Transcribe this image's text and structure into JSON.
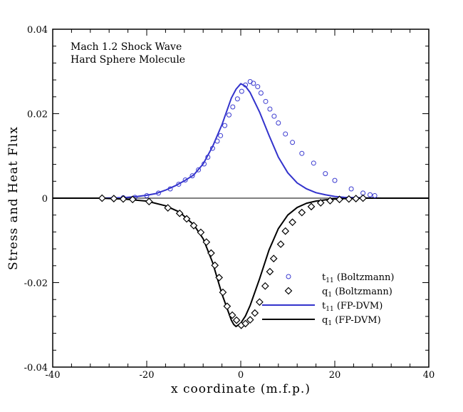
{
  "chart_data": {
    "type": "line",
    "xlabel": "x coordinate (m.f.p.)",
    "ylabel": "Stress and Heat Flux",
    "xlim": [
      -40,
      40
    ],
    "ylim": [
      -0.04,
      0.04
    ],
    "x_ticks": [
      -40,
      -20,
      0,
      20,
      40
    ],
    "x_tick_labels": [
      "-40",
      "-20",
      "0",
      "20",
      "40"
    ],
    "y_ticks": [
      -0.04,
      -0.02,
      0,
      0.02,
      0.04
    ],
    "y_tick_labels": [
      "-0.04",
      "-0.02",
      "0",
      "0.02",
      "0.04"
    ],
    "annotation": [
      "Mach 1.2 Shock Wave",
      "Hard Sphere Molecule"
    ],
    "legend_position": "bottom-right",
    "series": [
      {
        "name": "t11 (Boltzmann)",
        "legend_main": "t",
        "legend_sub": "11",
        "legend_rest": " (Boltzmann)",
        "kind": "scatter",
        "marker": "circle",
        "color": "#3a3ad0",
        "x": [
          -29.5,
          -27,
          -25,
          -22.5,
          -20,
          -17.5,
          -15,
          -13.2,
          -11.8,
          -10.3,
          -9,
          -7.8,
          -7,
          -6,
          -5,
          -4.3,
          -3.4,
          -2.5,
          -1.7,
          -0.7,
          0.2,
          1,
          2,
          2.7,
          3.6,
          4.3,
          5.3,
          6.2,
          7.1,
          8,
          9.5,
          11,
          13,
          15.5,
          18,
          20,
          23.5,
          26,
          27.5,
          28.5
        ],
        "y": [
          0.0,
          0.0,
          0.0001,
          0.0002,
          0.0006,
          0.0012,
          0.0022,
          0.0033,
          0.0043,
          0.0053,
          0.0067,
          0.0081,
          0.0097,
          0.0118,
          0.0135,
          0.0148,
          0.0172,
          0.0197,
          0.0216,
          0.0235,
          0.0253,
          0.0268,
          0.0276,
          0.0272,
          0.0264,
          0.0249,
          0.0229,
          0.0211,
          0.0194,
          0.0178,
          0.0152,
          0.0132,
          0.0106,
          0.0083,
          0.0058,
          0.0042,
          0.0022,
          0.0012,
          0.0008,
          0.0006
        ]
      },
      {
        "name": "q1 (Boltzmann)",
        "legend_main": "q",
        "legend_sub": "1",
        "legend_rest": " (Boltzmann)",
        "kind": "scatter",
        "marker": "diamond",
        "color": "#000000",
        "x": [
          -29.5,
          -27,
          -25,
          -23,
          -19.5,
          -15.5,
          -13,
          -11.5,
          -10,
          -8.5,
          -7.3,
          -6.3,
          -5.5,
          -4.6,
          -3.8,
          -2.9,
          -1.8,
          -0.9,
          0.1,
          1,
          2,
          3,
          4,
          5.2,
          6.2,
          7,
          8.5,
          9.5,
          11,
          13,
          15,
          17,
          19,
          21,
          23,
          24.5,
          26
        ],
        "y": [
          0.0,
          -0.0001,
          -0.0002,
          -0.0003,
          -0.0008,
          -0.0023,
          -0.0036,
          -0.0049,
          -0.0065,
          -0.0081,
          -0.0104,
          -0.013,
          -0.0159,
          -0.0188,
          -0.0223,
          -0.0256,
          -0.0277,
          -0.0289,
          -0.0301,
          -0.0297,
          -0.0288,
          -0.0272,
          -0.0246,
          -0.0208,
          -0.0174,
          -0.0143,
          -0.0109,
          -0.0078,
          -0.0057,
          -0.0034,
          -0.002,
          -0.0011,
          -0.0006,
          -0.0003,
          -0.0002,
          -0.0001,
          0.0
        ]
      },
      {
        "name": "t11 (FP-DVM)",
        "legend_main": "t",
        "legend_sub": "11",
        "legend_rest": " (FP-DVM)",
        "kind": "line",
        "color": "#3333cc",
        "x": [
          -40,
          -30,
          -25,
          -22,
          -20,
          -18,
          -16,
          -14,
          -12,
          -10,
          -8,
          -6,
          -4,
          -2,
          -1,
          0,
          1,
          2,
          4,
          6,
          8,
          10,
          12,
          14,
          16,
          18,
          20,
          22,
          25,
          30,
          36
        ],
        "y": [
          0.0,
          0.0,
          0.0001,
          0.0004,
          0.0007,
          0.0011,
          0.0019,
          0.0029,
          0.0041,
          0.0055,
          0.0081,
          0.0122,
          0.0174,
          0.0237,
          0.0258,
          0.0271,
          0.0265,
          0.025,
          0.0204,
          0.0149,
          0.0097,
          0.006,
          0.0036,
          0.0022,
          0.0013,
          0.0008,
          0.0004,
          0.0002,
          0.0001,
          0.0,
          0.0
        ]
      },
      {
        "name": "q1 (FP-DVM)",
        "legend_main": "q",
        "legend_sub": "1",
        "legend_rest": " (FP-DVM)",
        "kind": "line",
        "color": "#000000",
        "x": [
          -40,
          -30,
          -25,
          -20,
          -16,
          -13,
          -10,
          -8,
          -6,
          -4,
          -2,
          -1.5,
          -1,
          0,
          1,
          2,
          4,
          6,
          8,
          10,
          12,
          14,
          16,
          18,
          20,
          22,
          25,
          30,
          40
        ],
        "y": [
          0.0,
          0.0,
          -0.0002,
          -0.0007,
          -0.0018,
          -0.0033,
          -0.0063,
          -0.0096,
          -0.0152,
          -0.0227,
          -0.0289,
          -0.0299,
          -0.0304,
          -0.0296,
          -0.0279,
          -0.0254,
          -0.0191,
          -0.0123,
          -0.0072,
          -0.004,
          -0.0022,
          -0.0012,
          -0.0007,
          -0.0004,
          -0.0002,
          -0.0001,
          0.0,
          0.0,
          0.0
        ]
      }
    ]
  }
}
